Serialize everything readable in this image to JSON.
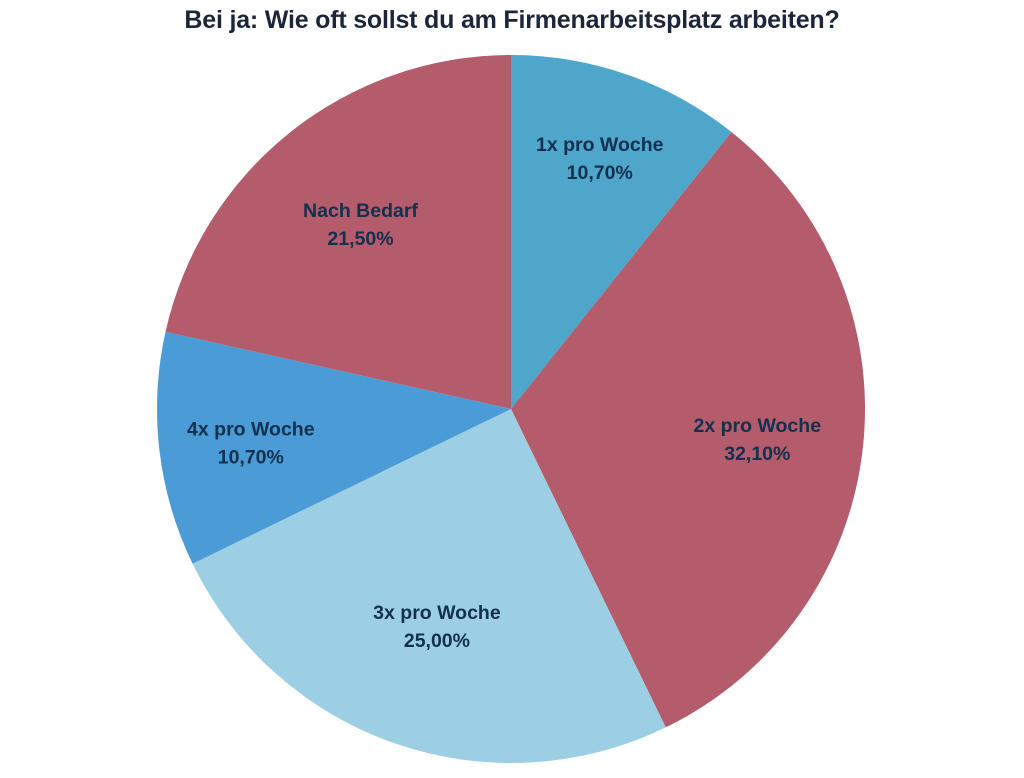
{
  "chart_data": {
    "type": "pie",
    "title": "Bei ja: Wie oft sollst du am Firmenarbeitsplatz arbeiten?",
    "categories": [
      "1x pro Woche",
      "2x pro Woche",
      "3x pro Woche",
      "4x pro Woche",
      "Nach Bedarf"
    ],
    "values": [
      10.7,
      32.1,
      25.0,
      10.7,
      21.5
    ],
    "value_labels": [
      "10,70%",
      "32,10%",
      "25,00%",
      "10,70%",
      "21,50%"
    ],
    "colors": [
      "#4ea6cb",
      "#b45c6c",
      "#9ccfe3",
      "#4a9bd6",
      "#b45c6c"
    ],
    "start_angle": "12 o'clock, clockwise",
    "legend": "none (labels inside slices)"
  }
}
